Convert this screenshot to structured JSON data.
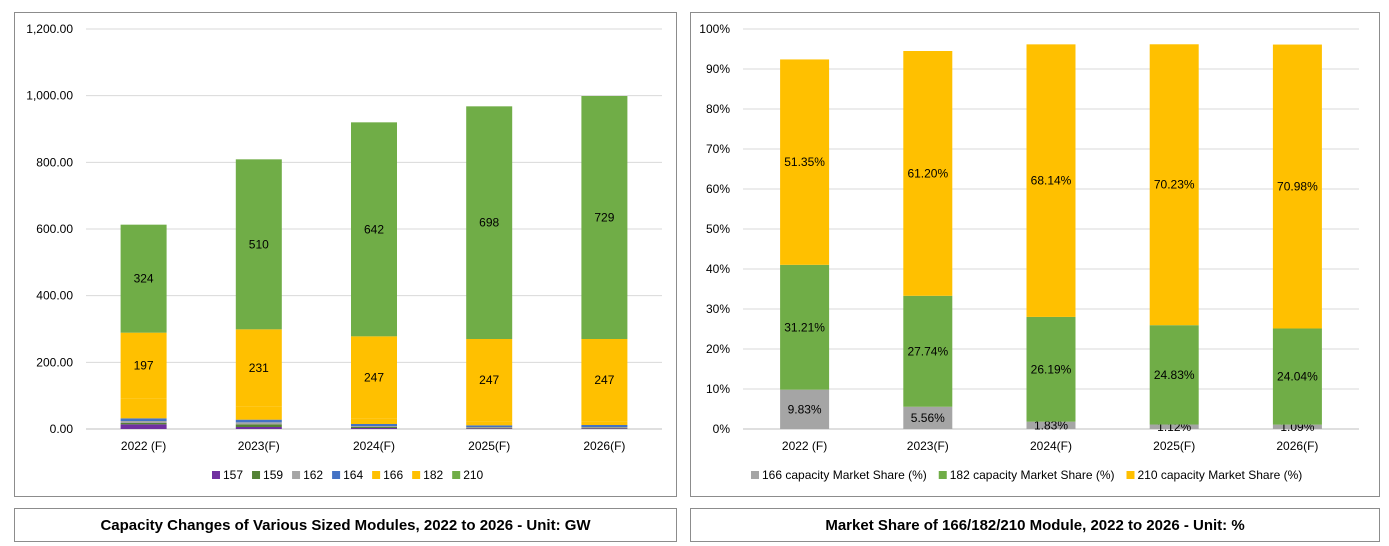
{
  "captions": {
    "left": "Capacity Changes of Various Sized Modules, 2022 to 2026 - Unit: GW",
    "right": "Market Share of 166/182/210 Module, 2022 to 2026 - Unit: %"
  },
  "chart_data": [
    {
      "type": "bar",
      "stacked": true,
      "title": "",
      "xlabel": "",
      "ylabel": "",
      "categories": [
        "2022 (F)",
        "2023(F)",
        "2024(F)",
        "2025(F)",
        "2026(F)"
      ],
      "ylim": [
        0,
        1200
      ],
      "yticks": [
        "0.00",
        "200.00",
        "400.00",
        "600.00",
        "800.00",
        "1,000.00",
        "1,200.00"
      ],
      "grid": true,
      "legend": "bottom",
      "series": [
        {
          "name": "157",
          "color": "#7030a0",
          "values": [
            14,
            6,
            3,
            2,
            2
          ],
          "labels": [
            "",
            "",
            "",
            "",
            ""
          ]
        },
        {
          "name": "159",
          "color": "#548235",
          "values": [
            4,
            8,
            3,
            2,
            2
          ],
          "labels": [
            "",
            "",
            "",
            "",
            ""
          ]
        },
        {
          "name": "162",
          "color": "#a5a5a5",
          "values": [
            6,
            6,
            3,
            2,
            2
          ],
          "labels": [
            "",
            "",
            "",
            "",
            ""
          ]
        },
        {
          "name": "164",
          "color": "#4472c4",
          "values": [
            8,
            8,
            6,
            5,
            6
          ],
          "labels": [
            "",
            "",
            "",
            "",
            ""
          ]
        },
        {
          "name": "166",
          "color": "#ffc000",
          "values": [
            60,
            40,
            16,
            12,
            11
          ],
          "labels": [
            "",
            "",
            "",
            "",
            ""
          ]
        },
        {
          "name": "182",
          "color": "#ffc000",
          "values": [
            197,
            231,
            247,
            247,
            247
          ],
          "labels": [
            "197",
            "231",
            "247",
            "247",
            "247"
          ]
        },
        {
          "name": "210",
          "color": "#70ad47",
          "values": [
            324,
            510,
            642,
            698,
            729
          ],
          "labels": [
            "324",
            "510",
            "642",
            "698",
            "729"
          ]
        }
      ]
    },
    {
      "type": "bar",
      "stacked": true,
      "title": "",
      "xlabel": "",
      "ylabel": "",
      "categories": [
        "2022 (F)",
        "2023(F)",
        "2024(F)",
        "2025(F)",
        "2026(F)"
      ],
      "ylim": [
        0,
        100
      ],
      "yticks": [
        "0%",
        "10%",
        "20%",
        "30%",
        "40%",
        "50%",
        "60%",
        "70%",
        "80%",
        "90%",
        "100%"
      ],
      "grid": true,
      "legend": "bottom",
      "series": [
        {
          "name": "166 capacity Market Share (%)",
          "color": "#a5a5a5",
          "values": [
            9.83,
            5.56,
            1.83,
            1.12,
            1.09
          ],
          "labels": [
            "9.83%",
            "5.56%",
            "1.83%",
            "1.12%",
            "1.09%"
          ]
        },
        {
          "name": "182 capacity Market Share (%)",
          "color": "#70ad47",
          "values": [
            31.21,
            27.74,
            26.19,
            24.83,
            24.04
          ],
          "labels": [
            "31.21%",
            "27.74%",
            "26.19%",
            "24.83%",
            "24.04%"
          ]
        },
        {
          "name": "210 capacity Market Share (%)",
          "color": "#ffc000",
          "values": [
            51.35,
            61.2,
            68.14,
            70.23,
            70.98
          ],
          "labels": [
            "51.35%",
            "61.20%",
            "68.14%",
            "70.23%",
            "70.98%"
          ]
        }
      ]
    }
  ]
}
